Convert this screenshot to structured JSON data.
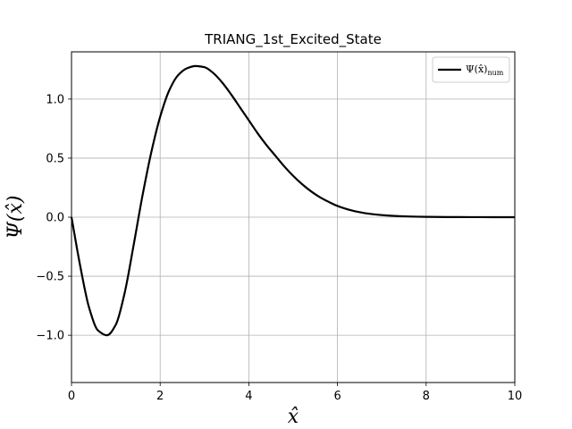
{
  "chart_data": {
    "type": "line",
    "title": "TRIANG_1st_Excited_State",
    "xlabel": "x̂",
    "ylabel": "Ψ(x̂)",
    "xlim": [
      0,
      10
    ],
    "ylim": [
      -1.4,
      1.4
    ],
    "xticks": [
      0,
      2,
      4,
      6,
      8,
      10
    ],
    "xtick_labels": [
      "0",
      "2",
      "4",
      "6",
      "8",
      "10"
    ],
    "yticks": [
      -1.0,
      -0.5,
      0.0,
      0.5,
      1.0
    ],
    "ytick_labels": [
      "−1.0",
      "−0.5",
      "0.0",
      "0.5",
      "1.0"
    ],
    "grid": true,
    "legend_position": "top-right",
    "series": [
      {
        "legend_base": "Ψ(x̂)",
        "legend_sub": "num",
        "color": "#000000",
        "x": [
          0,
          0.2,
          0.4,
          0.6,
          0.8,
          1.0,
          1.2,
          1.4,
          1.6,
          1.8,
          2.0,
          2.2,
          2.4,
          2.6,
          2.8,
          3.0,
          3.2,
          3.4,
          3.6,
          3.8,
          4.0,
          4.2,
          4.4,
          4.6,
          4.8,
          5.0,
          5.2,
          5.4,
          5.6,
          5.8,
          6.0,
          6.4,
          6.8,
          7.2,
          7.6,
          8.0,
          8.5,
          9.0,
          9.5,
          10.0
        ],
        "y": [
          0.0,
          -0.42,
          -0.77,
          -0.96,
          -1.0,
          -0.91,
          -0.64,
          -0.24,
          0.18,
          0.55,
          0.85,
          1.07,
          1.2,
          1.26,
          1.28,
          1.27,
          1.22,
          1.14,
          1.04,
          0.93,
          0.82,
          0.71,
          0.61,
          0.52,
          0.43,
          0.35,
          0.28,
          0.22,
          0.17,
          0.13,
          0.095,
          0.05,
          0.025,
          0.012,
          0.006,
          0.003,
          0.0012,
          0.0005,
          0.0002,
          0.0001
        ]
      }
    ]
  }
}
